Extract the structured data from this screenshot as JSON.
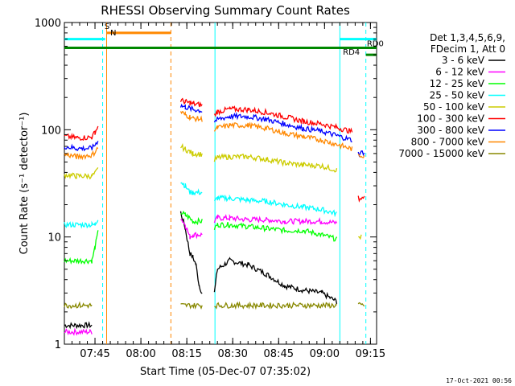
{
  "chart_data": {
    "type": "line",
    "title": "RHESSI Observing Summary Count Rates",
    "xlabel": "Start Time (05-Dec-07 07:35:02)",
    "ylabel": "Count Rate (s⁻¹ detector⁻¹)",
    "y_scale": "log",
    "ylim": [
      1,
      1000
    ],
    "xlim_minutes": [
      0,
      102
    ],
    "x_ticks": [
      {
        "label": "07:45",
        "minute": 10
      },
      {
        "label": "08:00",
        "minute": 25
      },
      {
        "label": "08:15",
        "minute": 40
      },
      {
        "label": "08:30",
        "minute": 55
      },
      {
        "label": "08:45",
        "minute": 70
      },
      {
        "label": "09:00",
        "minute": 85
      },
      {
        "label": "09:15",
        "minute": 100
      }
    ],
    "y_ticks": [
      {
        "label": "1",
        "value": 1
      },
      {
        "label": "10",
        "value": 10
      },
      {
        "label": "100",
        "value": 100
      },
      {
        "label": "1000",
        "value": 1000
      }
    ],
    "legend_header": [
      "Det 1,3,4,5,6,9,",
      "FDecim 1, Att 0"
    ],
    "legend_position": "right",
    "series": [
      {
        "name": "3 - 6 keV",
        "color": "#000000",
        "segments": [
          [
            [
              0,
              1.5
            ],
            [
              9,
              1.5
            ]
          ],
          [
            [
              38,
              17
            ],
            [
              39.5,
              12
            ],
            [
              41,
              7
            ],
            [
              42,
              6.5
            ],
            [
              43,
              5.5
            ],
            [
              44,
              3.6
            ],
            [
              45,
              3.0
            ]
          ],
          [
            [
              49,
              3
            ],
            [
              50,
              5
            ],
            [
              54,
              6
            ],
            [
              60,
              5.5
            ],
            [
              66,
              4.5
            ],
            [
              72,
              3.5
            ],
            [
              78,
              3.2
            ],
            [
              84,
              3
            ],
            [
              89,
              2.5
            ]
          ]
        ]
      },
      {
        "name": "6 - 12 keV",
        "color": "#ff00ff",
        "segments": [
          [
            [
              0,
              1.3
            ],
            [
              9,
              1.3
            ]
          ],
          [
            [
              38,
              15
            ],
            [
              39.5,
              13
            ],
            [
              41,
              10
            ],
            [
              42,
              10.5
            ],
            [
              45,
              10.5
            ]
          ],
          [
            [
              49,
              14
            ],
            [
              50,
              15
            ],
            [
              54,
              15
            ],
            [
              60,
              14.5
            ],
            [
              66,
              14.5
            ],
            [
              72,
              14
            ],
            [
              78,
              14
            ],
            [
              84,
              14
            ],
            [
              89,
              13.5
            ]
          ]
        ]
      },
      {
        "name": "12 - 25 keV",
        "color": "#00ff00",
        "segments": [
          [
            [
              0,
              6
            ],
            [
              9,
              6
            ],
            [
              10,
              8
            ],
            [
              11,
              11
            ]
          ],
          [
            [
              38,
              17
            ],
            [
              39.5,
              16
            ],
            [
              41,
              15
            ],
            [
              42,
              14
            ],
            [
              45,
              14
            ]
          ],
          [
            [
              49,
              12
            ],
            [
              50,
              13
            ],
            [
              54,
              13
            ],
            [
              60,
              12.5
            ],
            [
              66,
              12
            ],
            [
              72,
              11.5
            ],
            [
              78,
              11.5
            ],
            [
              84,
              10.5
            ],
            [
              89,
              9.5
            ]
          ]
        ]
      },
      {
        "name": "25 - 50 keV",
        "color": "#00ffff",
        "segments": [
          [
            [
              0,
              13
            ],
            [
              9,
              13
            ],
            [
              10,
              13
            ],
            [
              11,
              15
            ]
          ],
          [
            [
              38,
              33
            ],
            [
              39.5,
              30
            ],
            [
              41,
              26
            ],
            [
              42,
              26
            ],
            [
              45,
              26
            ]
          ],
          [
            [
              49,
              21
            ],
            [
              50,
              23
            ],
            [
              54,
              23
            ],
            [
              60,
              22
            ],
            [
              66,
              21.5
            ],
            [
              72,
              20
            ],
            [
              78,
              19
            ],
            [
              84,
              18
            ],
            [
              89,
              16.5
            ]
          ]
        ]
      },
      {
        "name": "50 - 100 keV",
        "color": "#cccc00",
        "segments": [
          [
            [
              0,
              38
            ],
            [
              4,
              37
            ],
            [
              9,
              37
            ],
            [
              10,
              39
            ],
            [
              11,
              43
            ]
          ],
          [
            [
              38,
              70
            ],
            [
              39.5,
              66
            ],
            [
              41,
              62
            ],
            [
              42,
              60
            ],
            [
              45,
              59
            ]
          ],
          [
            [
              49,
              52
            ],
            [
              50,
              55
            ],
            [
              54,
              56
            ],
            [
              60,
              56
            ],
            [
              66,
              53
            ],
            [
              72,
              49
            ],
            [
              78,
              47
            ],
            [
              84,
              46
            ],
            [
              89,
              42
            ]
          ],
          [
            [
              96,
              10
            ],
            [
              97,
              10
            ]
          ]
        ]
      },
      {
        "name": "100 - 300 keV",
        "color": "#ff0000",
        "segments": [
          [
            [
              0,
              87
            ],
            [
              4,
              84
            ],
            [
              9,
              85
            ],
            [
              10,
              95
            ],
            [
              11,
              107
            ]
          ],
          [
            [
              38,
              188
            ],
            [
              39.5,
              182
            ],
            [
              41,
              178
            ],
            [
              42,
              174
            ],
            [
              45,
              170
            ]
          ],
          [
            [
              49,
              137
            ],
            [
              50,
              147
            ],
            [
              54,
              156
            ],
            [
              60,
              154
            ],
            [
              66,
              145
            ],
            [
              72,
              132
            ],
            [
              78,
              120
            ],
            [
              84,
              113
            ],
            [
              89,
              105
            ],
            [
              94,
              96
            ]
          ],
          [
            [
              96,
              23
            ],
            [
              98,
              23
            ]
          ]
        ]
      },
      {
        "name": "300 - 800 keV",
        "color": "#0000ff",
        "segments": [
          [
            [
              0,
              70
            ],
            [
              4,
              67
            ],
            [
              9,
              67
            ],
            [
              10,
              72
            ],
            [
              11,
              80
            ]
          ],
          [
            [
              38,
              168
            ],
            [
              39.5,
              163
            ],
            [
              41,
              158
            ],
            [
              42,
              155
            ],
            [
              45,
              150
            ]
          ],
          [
            [
              49,
              119
            ],
            [
              50,
              125
            ],
            [
              54,
              133
            ],
            [
              60,
              133
            ],
            [
              66,
              125
            ],
            [
              72,
              113
            ],
            [
              78,
              103
            ],
            [
              84,
              97
            ],
            [
              89,
              88
            ],
            [
              94,
              80
            ]
          ],
          [
            [
              96,
              60
            ],
            [
              98,
              62
            ]
          ]
        ]
      },
      {
        "name": "800 - 7000 keV",
        "color": "#ff8800",
        "segments": [
          [
            [
              0,
              59
            ],
            [
              4,
              56
            ],
            [
              9,
              58
            ],
            [
              10,
              62
            ],
            [
              11,
              68
            ]
          ],
          [
            [
              38,
              147
            ],
            [
              39.5,
              138
            ],
            [
              41,
              132
            ],
            [
              42,
              128
            ],
            [
              45,
              125
            ]
          ],
          [
            [
              49,
              99
            ],
            [
              50,
              104
            ],
            [
              54,
              110
            ],
            [
              60,
              110
            ],
            [
              66,
              103
            ],
            [
              72,
              93
            ],
            [
              78,
              86
            ],
            [
              84,
              80
            ],
            [
              89,
              73
            ],
            [
              94,
              66
            ]
          ],
          [
            [
              96,
              57
            ],
            [
              98,
              58
            ]
          ]
        ]
      },
      {
        "name": "7000 - 15000 keV",
        "color": "#888800",
        "segments": [
          [
            [
              0,
              2.3
            ],
            [
              9,
              2.3
            ]
          ],
          [
            [
              38,
              2.3
            ],
            [
              45,
              2.3
            ]
          ],
          [
            [
              49,
              2.3
            ],
            [
              89,
              2.3
            ]
          ],
          [
            [
              96,
              2.3
            ],
            [
              98,
              2.3
            ]
          ]
        ]
      }
    ],
    "markers": {
      "vertical_lines": [
        {
          "minute": 12.5,
          "color": "#00ffff",
          "style": "dashed"
        },
        {
          "minute": 13.8,
          "color": "#ff8800",
          "style": "solid"
        },
        {
          "minute": 34.8,
          "color": "#ff8800",
          "style": "dashed"
        },
        {
          "minute": 49.2,
          "color": "#00ffff",
          "style": "solid"
        },
        {
          "minute": 90.0,
          "color": "#00ffff",
          "style": "solid"
        },
        {
          "minute": 98.5,
          "color": "#00ffff",
          "style": "dashed"
        }
      ],
      "bars": [
        {
          "label": "",
          "color": "#00ffff",
          "y_value": 700,
          "from": 0,
          "to": 13.3
        },
        {
          "label": "S",
          "color": "#ff8800",
          "y_value": 800,
          "from": 13.8,
          "to": 34.8
        },
        {
          "label": "",
          "color": "#008800",
          "y_value": 580,
          "from": 0,
          "to": 102
        },
        {
          "label": "",
          "color": "#00ffff",
          "y_value": 700,
          "from": 90,
          "to": 102
        },
        {
          "label": "RD4",
          "color": "#008800",
          "y_value": 500,
          "from": 98.5,
          "to": 102
        }
      ],
      "labels": [
        {
          "text": "S",
          "color": "#ff8800",
          "minute": 13.1,
          "y_value": 870
        },
        {
          "text": "N",
          "color": "#00ffff",
          "minute": 15.0,
          "y_value": 760
        },
        {
          "text": "RD0",
          "color": "#008800",
          "minute": 98.8,
          "y_value": 600
        },
        {
          "text": "RD4",
          "color": "#008800",
          "minute": 91.0,
          "y_value": 500
        }
      ]
    },
    "footer_timestamp": "17-Oct-2021 00:56"
  }
}
